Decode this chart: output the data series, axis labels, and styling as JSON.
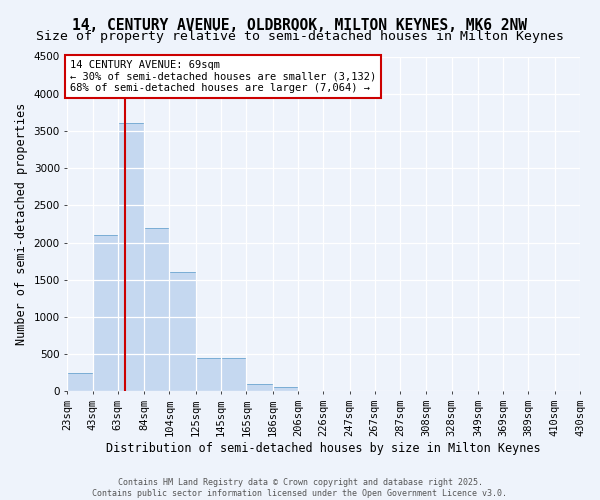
{
  "title_line1": "14, CENTURY AVENUE, OLDBROOK, MILTON KEYNES, MK6 2NW",
  "title_line2": "Size of property relative to semi-detached houses in Milton Keynes",
  "xlabel": "Distribution of semi-detached houses by size in Milton Keynes",
  "ylabel": "Number of semi-detached properties",
  "footer_line1": "Contains HM Land Registry data © Crown copyright and database right 2025.",
  "footer_line2": "Contains public sector information licensed under the Open Government Licence v3.0.",
  "annotation_title": "14 CENTURY AVENUE: 69sqm",
  "annotation_smaller": "← 30% of semi-detached houses are smaller (3,132)",
  "annotation_larger": "68% of semi-detached houses are larger (7,064) →",
  "property_size": 69,
  "bins": [
    23,
    43,
    63,
    84,
    104,
    125,
    145,
    165,
    186,
    206,
    226,
    247,
    267,
    287,
    308,
    328,
    349,
    369,
    389,
    410,
    430
  ],
  "bin_labels": [
    "23sqm",
    "43sqm",
    "63sqm",
    "84sqm",
    "104sqm",
    "125sqm",
    "145sqm",
    "165sqm",
    "186sqm",
    "206sqm",
    "226sqm",
    "247sqm",
    "267sqm",
    "287sqm",
    "308sqm",
    "328sqm",
    "349sqm",
    "369sqm",
    "389sqm",
    "410sqm",
    "430sqm"
  ],
  "bar_values": [
    250,
    2100,
    3600,
    2200,
    1600,
    450,
    450,
    100,
    60,
    0,
    0,
    0,
    0,
    0,
    0,
    0,
    0,
    0,
    0,
    0
  ],
  "bar_color": "#c5d8f0",
  "bar_edge_color": "#7aadd4",
  "vline_x": 69,
  "vline_color": "#cc0000",
  "ylim": [
    0,
    4500
  ],
  "yticks": [
    0,
    500,
    1000,
    1500,
    2000,
    2500,
    3000,
    3500,
    4000,
    4500
  ],
  "bg_color": "#eef3fb",
  "grid_color": "#ffffff",
  "annotation_box_color": "#ffffff",
  "annotation_box_edge": "#cc0000",
  "title_fontsize": 10.5,
  "subtitle_fontsize": 9.5,
  "axis_label_fontsize": 8.5,
  "tick_fontsize": 7.5,
  "annotation_fontsize": 7.5,
  "footer_fontsize": 6.0
}
